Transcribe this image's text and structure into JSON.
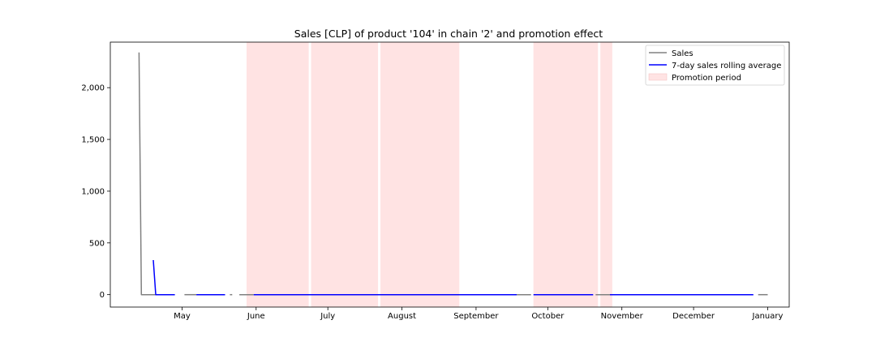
{
  "chart_data": {
    "type": "line",
    "title": "Sales [CLP] of product '104' in chain '2' and promotion effect",
    "xlabel": "",
    "ylabel": "",
    "ylim": [
      -120,
      2440
    ],
    "xlim": [
      "2022-04-01",
      "2023-01-10"
    ],
    "yticks": [
      {
        "value": 0,
        "label": "0"
      },
      {
        "value": 500,
        "label": "500"
      },
      {
        "value": 1000,
        "label": "1,000"
      },
      {
        "value": 1500,
        "label": "1,500"
      },
      {
        "value": 2000,
        "label": "2,000"
      }
    ],
    "xticks": [
      {
        "date": "2022-05-01",
        "label": "May"
      },
      {
        "date": "2022-06-01",
        "label": "June"
      },
      {
        "date": "2022-07-01",
        "label": "July"
      },
      {
        "date": "2022-08-01",
        "label": "August"
      },
      {
        "date": "2022-09-01",
        "label": "September"
      },
      {
        "date": "2022-10-01",
        "label": "October"
      },
      {
        "date": "2022-11-01",
        "label": "November"
      },
      {
        "date": "2022-12-01",
        "label": "December"
      },
      {
        "date": "2023-01-01",
        "label": "January"
      }
    ],
    "grid": false,
    "legend_position": "top-right",
    "series": [
      {
        "name": "Sales",
        "color": "#808080",
        "segments": [
          [
            [
              "2022-04-13",
              2340
            ],
            [
              "2022-04-14",
              0
            ],
            [
              "2022-04-23",
              0
            ]
          ],
          [
            [
              "2022-05-02",
              0
            ],
            [
              "2022-05-07",
              0
            ]
          ],
          [
            [
              "2022-05-21",
              0
            ],
            [
              "2022-05-22",
              0
            ]
          ],
          [
            [
              "2022-05-25",
              0
            ],
            [
              "2022-05-31",
              0
            ]
          ],
          [
            [
              "2022-09-18",
              0
            ],
            [
              "2022-09-24",
              0
            ]
          ],
          [
            [
              "2022-10-21",
              0
            ],
            [
              "2022-10-27",
              0
            ]
          ],
          [
            [
              "2022-12-28",
              0
            ],
            [
              "2023-01-01",
              0
            ]
          ]
        ]
      },
      {
        "name": "7-day sales rolling average",
        "color": "#0000ff",
        "segments": [
          [
            [
              "2022-04-19",
              334
            ],
            [
              "2022-04-20",
              0
            ],
            [
              "2022-04-28",
              0
            ]
          ],
          [
            [
              "2022-05-07",
              0
            ],
            [
              "2022-05-19",
              0
            ]
          ],
          [
            [
              "2022-05-31",
              0
            ],
            [
              "2022-09-18",
              0
            ]
          ],
          [
            [
              "2022-09-25",
              0
            ],
            [
              "2022-10-20",
              0
            ]
          ],
          [
            [
              "2022-10-27",
              0
            ],
            [
              "2022-12-26",
              0
            ]
          ]
        ]
      }
    ],
    "promotion_periods": {
      "name": "Promotion period",
      "color": "#ffe3e3",
      "ranges": [
        [
          "2022-05-28",
          "2022-06-23"
        ],
        [
          "2022-06-24",
          "2022-07-22"
        ],
        [
          "2022-07-23",
          "2022-08-25"
        ],
        [
          "2022-09-25",
          "2022-10-22"
        ],
        [
          "2022-10-23",
          "2022-10-28"
        ]
      ]
    }
  }
}
